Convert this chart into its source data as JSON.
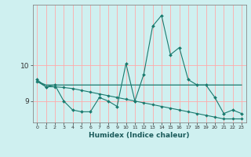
{
  "title": "",
  "xlabel": "Humidex (Indice chaleur)",
  "ylabel": "",
  "background_color": "#cff0f0",
  "grid_color": "#ffaaaa",
  "line_color": "#1a7a6e",
  "x": [
    0,
    1,
    2,
    3,
    4,
    5,
    6,
    7,
    8,
    9,
    10,
    11,
    12,
    13,
    14,
    15,
    16,
    17,
    18,
    19,
    20,
    21,
    22,
    23
  ],
  "line1": [
    9.6,
    9.4,
    9.45,
    9.0,
    8.75,
    8.7,
    8.7,
    9.1,
    9.0,
    8.85,
    10.05,
    9.0,
    9.75,
    11.1,
    11.4,
    10.3,
    10.5,
    9.6,
    9.45,
    9.45,
    9.1,
    8.65,
    8.75,
    8.65
  ],
  "line2": [
    9.55,
    9.45,
    9.45,
    9.45,
    9.45,
    9.45,
    9.45,
    9.45,
    9.45,
    9.45,
    9.45,
    9.45,
    9.45,
    9.45,
    9.45,
    9.45,
    9.45,
    9.45,
    9.45,
    9.45,
    9.45,
    9.45,
    9.45,
    9.45
  ],
  "line3": [
    9.55,
    9.4,
    9.4,
    9.38,
    9.35,
    9.3,
    9.25,
    9.2,
    9.15,
    9.1,
    9.05,
    9.0,
    8.95,
    8.9,
    8.85,
    8.8,
    8.75,
    8.7,
    8.65,
    8.6,
    8.55,
    8.5,
    8.5,
    8.5
  ],
  "ylim": [
    8.4,
    11.7
  ],
  "yticks": [
    9,
    10
  ],
  "xlim": [
    -0.5,
    23.5
  ],
  "xticks": [
    0,
    1,
    2,
    3,
    4,
    5,
    6,
    7,
    8,
    9,
    10,
    11,
    12,
    13,
    14,
    15,
    16,
    17,
    18,
    19,
    20,
    21,
    22,
    23
  ]
}
